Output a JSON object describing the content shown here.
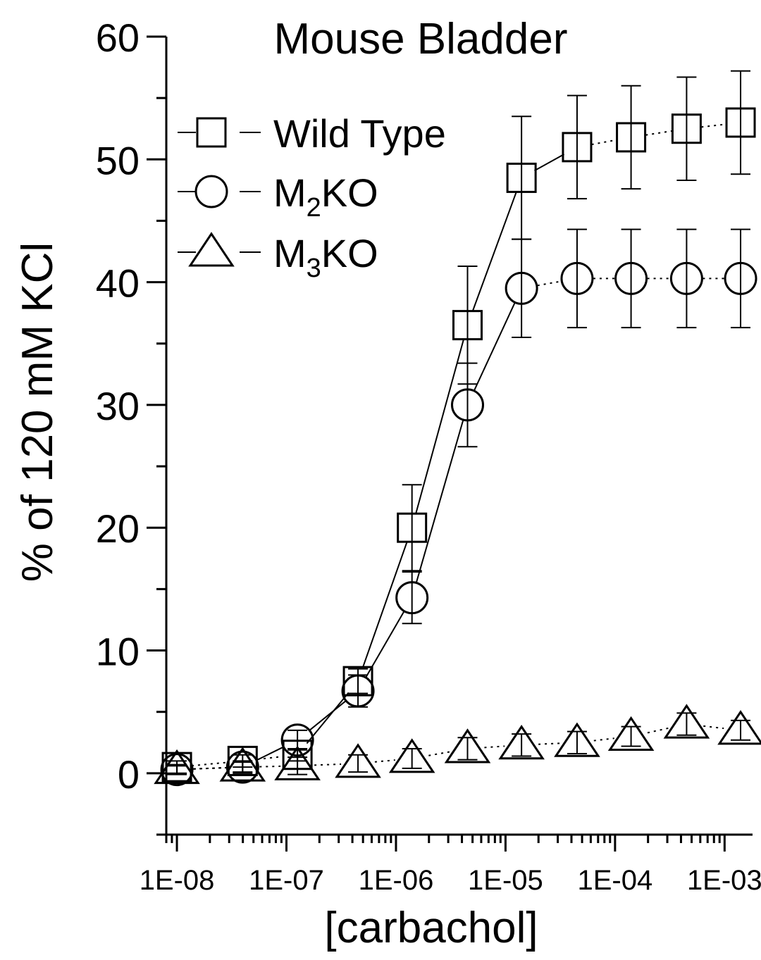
{
  "chart_data": {
    "type": "scatter",
    "title": "Mouse Bladder",
    "xlabel": "[carbachol]",
    "ylabel": "% of 120 mM KCl",
    "xscale": "log",
    "xlim": [
      8e-09,
      0.0018
    ],
    "ylim": [
      -5,
      60
    ],
    "yticks": [
      0,
      10,
      20,
      30,
      40,
      50,
      60
    ],
    "ytick_labels": [
      "0",
      "10",
      "20",
      "30",
      "40",
      "50",
      "60"
    ],
    "xticks": [
      1e-08,
      1e-07,
      1e-06,
      1e-05,
      0.0001,
      0.001
    ],
    "xtick_labels": [
      "1E-08",
      "1E-07",
      "1E-06",
      "1E-05",
      "1E-04",
      "1E-03"
    ],
    "legend_position": "top-left",
    "grid": false,
    "x": [
      1e-08,
      3.98e-08,
      1.26e-07,
      4.5e-07,
      1.4e-06,
      4.5e-06,
      1.4e-05,
      4.5e-05,
      0.00014,
      0.00045,
      0.0014
    ],
    "series": [
      {
        "name": "Wild Type",
        "marker": "square",
        "values": [
          0.5,
          1.0,
          1.5,
          7.5,
          20.0,
          36.5,
          48.5,
          51.0,
          51.8,
          52.5,
          53.0
        ],
        "errors": [
          0.5,
          0.5,
          0.5,
          1.0,
          3.5,
          4.8,
          5.0,
          4.2,
          4.2,
          4.2,
          4.2
        ]
      },
      {
        "name": "M₂KO",
        "label_main": "M",
        "label_sub": "2",
        "label_tail": "KO",
        "marker": "circle",
        "values": [
          0.3,
          0.5,
          2.7,
          6.7,
          14.3,
          30.0,
          39.5,
          40.3,
          40.3,
          40.3,
          40.3
        ],
        "errors": [
          0.3,
          0.4,
          0.8,
          1.3,
          2.1,
          3.4,
          4.0,
          4.0,
          4.0,
          4.0,
          4.0
        ]
      },
      {
        "name": "M₃KO",
        "label_main": "M",
        "label_sub": "3",
        "label_tail": "KO",
        "marker": "triangle",
        "values": [
          0.3,
          0.5,
          0.6,
          0.8,
          1.2,
          2.0,
          2.3,
          2.5,
          3.0,
          4.0,
          3.5
        ],
        "errors": [
          0.4,
          0.5,
          0.7,
          0.7,
          0.8,
          0.9,
          0.9,
          0.9,
          0.8,
          0.9,
          0.8
        ]
      }
    ]
  }
}
